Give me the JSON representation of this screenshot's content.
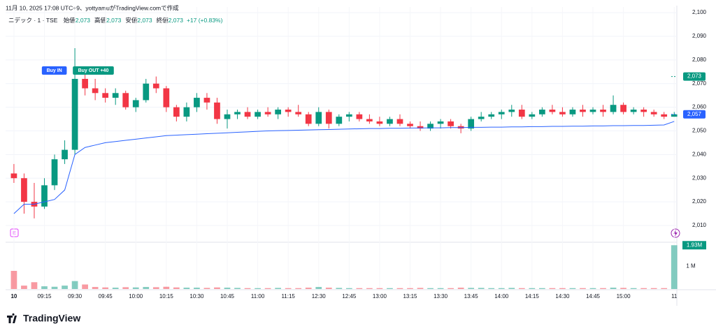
{
  "header": "11月 10, 2025 17:08 UTC+9、yottyamuがTradingView.comで作成",
  "legend": {
    "symbol": "ニデック · 1 · TSE",
    "fields": [
      {
        "label": "始値",
        "value": "2,073"
      },
      {
        "label": "高値",
        "value": "2,073"
      },
      {
        "label": "安値",
        "value": "2,073"
      },
      {
        "label": "終値",
        "value": "2,073"
      }
    ],
    "change": "+17 (+0.83%)"
  },
  "logo": "TradingView",
  "chart_data": {
    "type": "candlestick",
    "x": [
      0,
      5,
      10,
      15,
      20,
      25,
      30,
      35,
      40,
      45,
      50,
      55,
      60,
      65,
      70,
      75,
      80,
      85,
      90,
      95,
      100,
      105,
      110,
      115,
      120,
      125,
      130,
      135,
      140,
      145,
      150,
      155,
      160,
      165,
      170,
      175,
      180,
      185,
      190,
      195,
      200,
      205,
      210,
      215,
      220,
      225,
      230,
      235,
      240,
      245,
      250,
      255,
      260,
      265,
      270,
      275,
      280,
      285,
      290,
      295,
      300,
      305,
      310,
      315,
      320,
      325
    ],
    "open": [
      2032,
      2030,
      2020,
      2018,
      2027,
      2038,
      2042,
      2072,
      2068,
      2066,
      2064,
      2066,
      2060,
      2063,
      2070,
      2068,
      2060,
      2056,
      2060,
      2064,
      2062,
      2055,
      2057,
      2058,
      2056,
      2058,
      2057,
      2059,
      2058,
      2057,
      2053,
      2058,
      2053,
      2056,
      2057,
      2055,
      2054,
      2053,
      2055,
      2053,
      2052,
      2051,
      2053,
      2054,
      2052,
      2051,
      2055,
      2056,
      2057,
      2058,
      2059,
      2056,
      2057,
      2059,
      2058,
      2057,
      2059,
      2058,
      2059,
      2058,
      2061,
      2058,
      2059,
      2058,
      2057,
      2056
    ],
    "high": [
      2036,
      2032,
      2028,
      2030,
      2040,
      2046,
      2085,
      2075,
      2072,
      2068,
      2068,
      2067,
      2064,
      2072,
      2073,
      2069,
      2061,
      2062,
      2066,
      2066,
      2064,
      2059,
      2059,
      2060,
      2059,
      2060,
      2060,
      2060,
      2061,
      2058,
      2060,
      2059,
      2057,
      2058,
      2058,
      2057,
      2056,
      2056,
      2057,
      2054,
      2054,
      2054,
      2055,
      2055,
      2053,
      2056,
      2058,
      2058,
      2059,
      2061,
      2061,
      2058,
      2060,
      2061,
      2060,
      2060,
      2061,
      2060,
      2061,
      2065,
      2062,
      2060,
      2060,
      2059,
      2058,
      2058
    ],
    "low": [
      2028,
      2015,
      2013,
      2017,
      2025,
      2036,
      2040,
      2065,
      2063,
      2062,
      2061,
      2059,
      2058,
      2062,
      2066,
      2058,
      2054,
      2054,
      2058,
      2059,
      2053,
      2051,
      2055,
      2055,
      2055,
      2056,
      2055,
      2056,
      2056,
      2052,
      2052,
      2051,
      2052,
      2054,
      2054,
      2053,
      2052,
      2052,
      2052,
      2051,
      2050,
      2050,
      2051,
      2051,
      2049,
      2050,
      2054,
      2055,
      2055,
      2056,
      2055,
      2055,
      2056,
      2057,
      2056,
      2056,
      2056,
      2057,
      2056,
      2057,
      2057,
      2057,
      2056,
      2056,
      2055,
      2056
    ],
    "close": [
      2030,
      2020,
      2018,
      2027,
      2038,
      2042,
      2072,
      2068,
      2066,
      2064,
      2066,
      2060,
      2063,
      2070,
      2068,
      2060,
      2056,
      2060,
      2064,
      2062,
      2055,
      2057,
      2058,
      2056,
      2058,
      2057,
      2059,
      2058,
      2057,
      2053,
      2058,
      2053,
      2056,
      2057,
      2055,
      2054,
      2053,
      2055,
      2053,
      2052,
      2051,
      2053,
      2054,
      2052,
      2051,
      2055,
      2056,
      2057,
      2058,
      2059,
      2056,
      2057,
      2059,
      2058,
      2057,
      2059,
      2058,
      2059,
      2058,
      2061,
      2058,
      2059,
      2058,
      2057,
      2056,
      2057
    ],
    "up_color": "#089981",
    "down_color": "#f23645",
    "vwap": {
      "color": "#2962ff",
      "values": [
        2015,
        2019,
        2019,
        2020,
        2021,
        2025,
        2040,
        2043,
        2044,
        2045,
        2045.5,
        2046,
        2046.5,
        2047,
        2047.5,
        2048,
        2048.2,
        2048.4,
        2048.6,
        2048.8,
        2049,
        2049.2,
        2049.4,
        2049.6,
        2049.8,
        2050,
        2050.1,
        2050.2,
        2050.3,
        2050.4,
        2050.5,
        2050.6,
        2050.7,
        2050.8,
        2050.9,
        2051,
        2051,
        2051.1,
        2051.1,
        2051.2,
        2051.2,
        2051.3,
        2051.3,
        2051.4,
        2051.4,
        2051.5,
        2051.5,
        2051.6,
        2051.6,
        2051.7,
        2051.7,
        2051.8,
        2051.8,
        2051.9,
        2051.9,
        2052,
        2052,
        2052.1,
        2052.1,
        2052.2,
        2052.2,
        2052.3,
        2052.3,
        2052.4,
        2052.5,
        2054
      ]
    },
    "xlim": [
      -4.1,
      326.3
    ],
    "xticks": [
      {
        "value": 0,
        "label": "10"
      },
      {
        "value": 15,
        "label": "09:15"
      },
      {
        "value": 30,
        "label": "09:30"
      },
      {
        "value": 45,
        "label": "09:45"
      },
      {
        "value": 60,
        "label": "10:00"
      },
      {
        "value": 75,
        "label": "10:15"
      },
      {
        "value": 90,
        "label": "10:30"
      },
      {
        "value": 105,
        "label": "10:45"
      },
      {
        "value": 120,
        "label": "11:00"
      },
      {
        "value": 135,
        "label": "11:15"
      },
      {
        "value": 150,
        "label": "12:30"
      },
      {
        "value": 165,
        "label": "12:45"
      },
      {
        "value": 180,
        "label": "13:00"
      },
      {
        "value": 195,
        "label": "13:15"
      },
      {
        "value": 210,
        "label": "13:30"
      },
      {
        "value": 225,
        "label": "13:45"
      },
      {
        "value": 240,
        "label": "14:00"
      },
      {
        "value": 255,
        "label": "14:15"
      },
      {
        "value": 270,
        "label": "14:30"
      },
      {
        "value": 285,
        "label": "14:45"
      },
      {
        "value": 300,
        "label": "15:00"
      },
      {
        "value": 325,
        "label": "11"
      }
    ],
    "ylim": [
      2003.5,
      2102.4
    ],
    "yticks": [
      {
        "value": 2010,
        "label": "2,010"
      },
      {
        "value": 2020,
        "label": "2,020"
      },
      {
        "value": 2030,
        "label": "2,030"
      },
      {
        "value": 2040,
        "label": "2,040"
      },
      {
        "value": 2050,
        "label": "2,050"
      },
      {
        "value": 2060,
        "label": "2,060"
      },
      {
        "value": 2070,
        "label": "2,070"
      },
      {
        "value": 2080,
        "label": "2,080"
      },
      {
        "value": 2090,
        "label": "2,090"
      },
      {
        "value": 2100,
        "label": "2,100"
      }
    ],
    "grid": true,
    "markers": [
      {
        "value": 2073,
        "label": "2,073",
        "color": "#089981"
      },
      {
        "value": 2057,
        "label": "2,057",
        "color": "#2962ff"
      }
    ],
    "annotations": [
      {
        "text": "Buy IN",
        "x": 26,
        "color": "#2962ff"
      },
      {
        "text": "Buy OUT +40",
        "x": 29,
        "color": "#089981"
      }
    ],
    "volume": {
      "values": [
        800000,
        150000,
        300000,
        120000,
        100000,
        150000,
        350000,
        200000,
        90000,
        70000,
        60000,
        80000,
        70000,
        90000,
        80000,
        100000,
        70000,
        60000,
        60000,
        50000,
        70000,
        60000,
        50000,
        40000,
        40000,
        40000,
        50000,
        40000,
        40000,
        60000,
        90000,
        60000,
        50000,
        40000,
        40000,
        40000,
        40000,
        40000,
        40000,
        40000,
        50000,
        40000,
        40000,
        40000,
        60000,
        50000,
        50000,
        40000,
        40000,
        50000,
        40000,
        40000,
        40000,
        40000,
        40000,
        40000,
        40000,
        40000,
        40000,
        60000,
        50000,
        40000,
        40000,
        40000,
        40000,
        1930000
      ],
      "value_labels": [
        null,
        null,
        null,
        null,
        null,
        null,
        null,
        null,
        null,
        null,
        null,
        null,
        null,
        null,
        null,
        null,
        null,
        null,
        null,
        null,
        null,
        null,
        null,
        null,
        null,
        null,
        null,
        null,
        null,
        null,
        null,
        null,
        null,
        null,
        null,
        null,
        null,
        null,
        null,
        null,
        null,
        null,
        null,
        null,
        null,
        null,
        null,
        null,
        null,
        null,
        null,
        null,
        null,
        null,
        null,
        null,
        null,
        null,
        null,
        null,
        null,
        null,
        null,
        null,
        null,
        "1.93M"
      ],
      "ylim": [
        0,
        2000000
      ],
      "yticks": [
        {
          "value": 1000000,
          "label": "1 M"
        }
      ]
    }
  }
}
